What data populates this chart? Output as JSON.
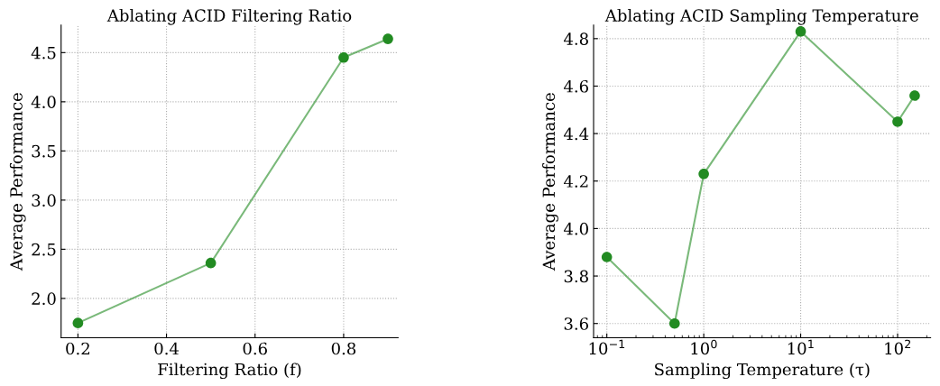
{
  "chart_data": [
    {
      "type": "line",
      "title": "Ablating ACID Filtering Ratio",
      "xlabel": "Filtering Ratio (f)",
      "ylabel": "Average Performance",
      "x": [
        0.2,
        0.5,
        0.8,
        0.9
      ],
      "series": [
        {
          "color": "#228b22",
          "values": [
            1.75,
            2.36,
            4.45,
            4.64
          ]
        }
      ],
      "xlim": [
        0.162,
        0.923
      ],
      "ylim": [
        1.6,
        4.78
      ],
      "xticks": [
        0.2,
        0.4,
        0.6,
        0.8
      ],
      "yticks": [
        {
          "value": 2,
          "label": "2.0"
        },
        2.5,
        {
          "value": 3,
          "label": "3.0"
        },
        3.5,
        {
          "value": 4,
          "label": "4.0"
        },
        4.5
      ],
      "grid": true,
      "marker": "circle",
      "line_style": "solid"
    },
    {
      "type": "line",
      "title": "Ablating ACID Sampling Temperature",
      "xlabel": "Sampling Temperature (τ)",
      "ylabel": "Average Performance",
      "x": [
        0.1,
        0.5,
        1,
        10,
        100,
        150
      ],
      "series": [
        {
          "color": "#228b22",
          "values": [
            3.88,
            3.6,
            4.23,
            4.83,
            4.45,
            4.56
          ]
        }
      ],
      "log": "x",
      "xlim": [
        0.073,
        219
      ],
      "ylim": [
        3.54,
        4.857
      ],
      "xticks": [
        {
          "value": 0.1,
          "label": "10$^{−1}$"
        },
        {
          "value": 1,
          "label": "10$^{0}$"
        },
        {
          "value": 10,
          "label": "10$^{1}$"
        },
        {
          "value": 100,
          "label": "10$^{2}$"
        }
      ],
      "yticks": [
        3.6,
        3.8,
        {
          "value": 4,
          "label": "4.0"
        },
        4.2,
        4.4,
        4.6,
        4.8
      ],
      "grid": true,
      "marker": "circle",
      "line_style": "solid"
    }
  ]
}
